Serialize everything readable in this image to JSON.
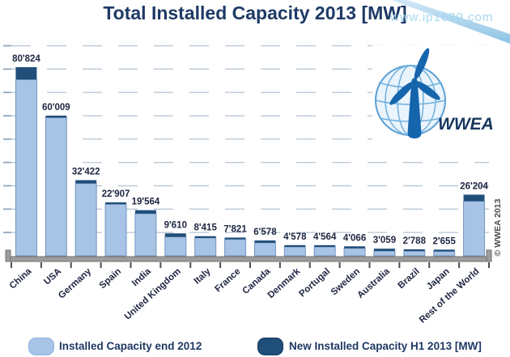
{
  "title": "Total Installed Capacity 2013 [MW]",
  "watermark": "www.ip1689.com",
  "copyright": "© WWEA 2013",
  "logo": {
    "text": "WWEA"
  },
  "legend": {
    "items": [
      {
        "label": "Installed Capacity end 2012",
        "color": "#a7c4e6"
      },
      {
        "label": "New Installed Capacity H1 2013 [MW]",
        "color": "#1f4e79"
      }
    ]
  },
  "colors": {
    "title_text": "#1e3a66",
    "label_text": "#1d2540",
    "bar_light": "#a7c4e6",
    "bar_light_border": "#7496bf",
    "bar_dark": "#1f4e79",
    "gridline": "#bcc9d6",
    "axis_bar": "#9c9c9c",
    "axis_tick": "#4d4d4d",
    "watermark_text": "#a5d7ee",
    "logo_blue": "#1565ad"
  },
  "chart_data": {
    "type": "bar",
    "stacked": true,
    "title": "Total Installed Capacity 2013 [MW]",
    "xlabel": "",
    "ylabel": "",
    "grid": "dashed horizontal, every 10'000 MW, unlabeled ticks on left axis",
    "legend_position": "bottom",
    "categories": [
      "China",
      "USA",
      "Germany",
      "Spain",
      "India",
      "United Kingdom",
      "Italy",
      "France",
      "Canada",
      "Denmark",
      "Portugal",
      "Sweden",
      "Australia",
      "Brazil",
      "Japan",
      "Rest of the World"
    ],
    "totals": [
      80824,
      60009,
      32422,
      22907,
      19564,
      9610,
      8415,
      7821,
      6578,
      4578,
      4564,
      4066,
      3059,
      2788,
      2655,
      26204
    ],
    "value_labels": [
      "80'824",
      "60'009",
      "32'422",
      "22'907",
      "19'564",
      "9'610",
      "8'415",
      "7'821",
      "6'578",
      "4'578",
      "4'564",
      "4'066",
      "3'059",
      "2'788",
      "2'655",
      "26'204"
    ],
    "new_installed_h1_2013_est": [
      5300,
      800,
      1400,
      800,
      1500,
      1500,
      700,
      700,
      1000,
      700,
      500,
      850,
      1000,
      700,
      500,
      2800
    ],
    "note": "Dark cap segments (New Installed Capacity H1 2013) are not numerically labeled in the image; values above are estimated from pixel heights. Labeled numbers are the stacked totals.",
    "series": [
      {
        "name": "Installed Capacity end 2012",
        "color": "#a7c4e6"
      },
      {
        "name": "New Installed Capacity H1 2013 [MW]",
        "color": "#1f4e79"
      }
    ],
    "ylim": [
      0,
      94000
    ],
    "gridline_step": 10000
  }
}
